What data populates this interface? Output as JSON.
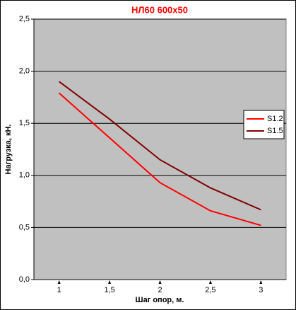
{
  "chart_data": {
    "type": "line",
    "title": "НЛ60 600х50",
    "x_label": "Шаг опор, м.",
    "y_label": "Нагрузка, кН.",
    "x": [
      1,
      1.5,
      2,
      2.5,
      3
    ],
    "series": [
      {
        "name": "S1.2",
        "color": "#ff0000",
        "values": [
          1.79,
          1.36,
          0.93,
          0.66,
          0.52
        ]
      },
      {
        "name": "S1.5",
        "color": "#800000",
        "values": [
          1.9,
          1.54,
          1.15,
          0.88,
          0.67
        ]
      }
    ],
    "xlim": [
      0.75,
      3.25
    ],
    "xticks": [
      1,
      {
        "value": 1.5,
        "label": "1,5"
      },
      2,
      {
        "value": 2.5,
        "label": "2,5"
      },
      3
    ],
    "ylim": [
      0,
      2.5
    ],
    "yticks": [
      {
        "value": 0,
        "label": "0,0"
      },
      {
        "value": 0.5,
        "label": "0,5"
      },
      {
        "value": 1,
        "label": "1,0"
      },
      {
        "value": 1.5,
        "label": "1,5"
      },
      {
        "value": 2,
        "label": "2,0"
      },
      {
        "value": 2.5,
        "label": "2,5"
      }
    ],
    "grid": true,
    "plot_background": "#c0c0c0",
    "legend": "right"
  }
}
